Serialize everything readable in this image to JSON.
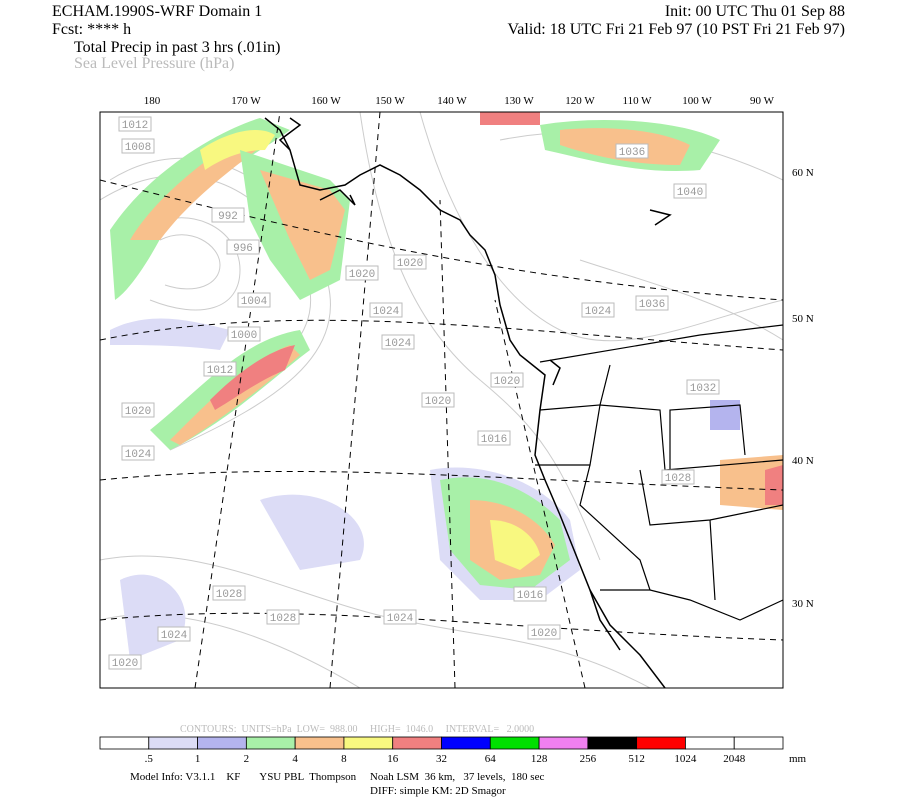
{
  "header": {
    "title": "ECHAM.1990S-WRF Domain 1",
    "forecast": "Fcst: **** h",
    "field_primary": "Total Precip in past 3 hrs (.01in)",
    "field_secondary": "Sea Level Pressure (hPa)",
    "init": "Init: 00 UTC Thu 01 Sep 88",
    "valid": "Valid: 18 UTC Fri 21 Feb 97 (10 PST Fri 21 Feb 97)"
  },
  "map": {
    "longitude_labels": [
      "180",
      "170 W",
      "160 W",
      "150 W",
      "140 W",
      "130 W",
      "120 W",
      "110 W",
      "100 W",
      "90 W"
    ],
    "latitude_labels": [
      "60 N",
      "50 N",
      "40 N",
      "30 N"
    ],
    "contour_labels": [
      "1012",
      "1008",
      "992",
      "996",
      "1004",
      "1000",
      "1012",
      "1020",
      "1024",
      "1020",
      "1020",
      "1024",
      "1024",
      "1020",
      "1020",
      "1016",
      "1036",
      "1040",
      "1036",
      "1024",
      "1032",
      "1028",
      "1028",
      "1028",
      "1024",
      "1020",
      "1024",
      "1016",
      "1020"
    ]
  },
  "contour_info": "CONTOURS:  UNITS=hPa  LOW=  988.00     HIGH=  1046.0     INTERVAL=   2.0000",
  "colorbar": {
    "colors": [
      "#ffffff",
      "#dcdcf6",
      "#b4b4ee",
      "#a8f0a8",
      "#f8c08c",
      "#f8f880",
      "#f08080",
      "#0000ff",
      "#00e000",
      "#f080f0",
      "#000000",
      "#ff0000",
      "#ffffff",
      "#ffffff"
    ],
    "labels": [
      ".5",
      "1",
      "2",
      "4",
      "8",
      "16",
      "32",
      "64",
      "128",
      "256",
      "512",
      "1024",
      "2048"
    ],
    "unit": "mm"
  },
  "footer": {
    "model_info": "Model Info: V3.1.1    KF       YSU PBL  Thompson     Noah LSM  36 km,   37 levels,  180 sec",
    "diff": "DIFF: simple KM: 2D Smagor"
  }
}
